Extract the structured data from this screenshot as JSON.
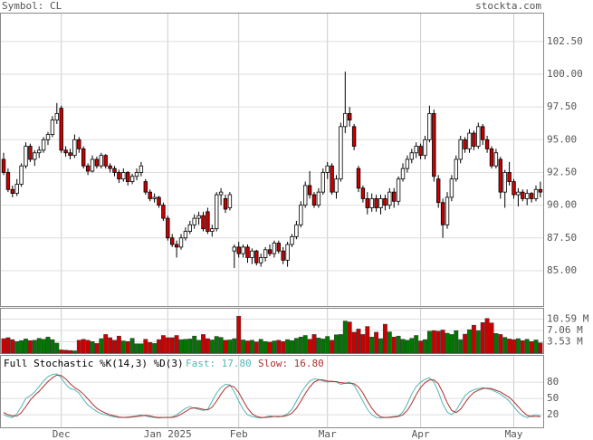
{
  "header": {
    "symbol": "Symbol: CL",
    "site": "stockta.com"
  },
  "chart_data": [
    {
      "type": "candlestick",
      "up_color": "#ffffff",
      "down_color": "#cc0000",
      "ylim": [
        82.3,
        104.7
      ],
      "yticks": [
        {
          "value": 85,
          "label": "85.00"
        },
        {
          "value": 87.5,
          "label": "87.50"
        },
        {
          "value": 90,
          "label": "90.00"
        },
        {
          "value": 92.5,
          "label": "92.50"
        },
        {
          "value": 95,
          "label": "95.00"
        },
        {
          "value": 97.5,
          "label": "97.50"
        },
        {
          "value": 100,
          "label": "100.00"
        },
        {
          "value": 102.5,
          "label": "102.50"
        }
      ],
      "candles": [
        [
          93.5,
          94.0,
          92.3,
          92.5
        ],
        [
          92.5,
          92.8,
          91.0,
          91.2
        ],
        [
          91.2,
          91.5,
          90.6,
          90.9
        ],
        [
          90.9,
          92.0,
          90.7,
          91.6
        ],
        [
          91.6,
          93.2,
          91.4,
          93.0
        ],
        [
          93.0,
          94.8,
          92.8,
          94.5
        ],
        [
          94.5,
          94.7,
          93.3,
          93.5
        ],
        [
          93.5,
          94.2,
          93.0,
          94.0
        ],
        [
          94.0,
          94.5,
          93.6,
          94.2
        ],
        [
          94.2,
          95.2,
          94.0,
          95.0
        ],
        [
          95.0,
          95.6,
          94.6,
          95.4
        ],
        [
          95.4,
          96.8,
          95.2,
          96.5
        ],
        [
          96.5,
          97.8,
          96.2,
          97.0
        ],
        [
          97.4,
          97.6,
          94.0,
          94.2
        ],
        [
          94.2,
          94.5,
          93.7,
          94.0
        ],
        [
          94.0,
          94.3,
          93.5,
          93.8
        ],
        [
          93.8,
          95.4,
          93.6,
          95.0
        ],
        [
          95.0,
          95.2,
          94.0,
          94.3
        ],
        [
          94.3,
          94.5,
          92.8,
          93.0
        ],
        [
          93.0,
          93.2,
          92.3,
          92.6
        ],
        [
          92.6,
          93.8,
          92.5,
          93.5
        ],
        [
          93.5,
          93.7,
          92.8,
          93.0
        ],
        [
          93.0,
          94.0,
          92.8,
          93.8
        ],
        [
          93.8,
          93.9,
          92.8,
          93.0
        ],
        [
          93.0,
          93.2,
          92.5,
          92.8
        ],
        [
          92.8,
          93.0,
          92.2,
          92.5
        ],
        [
          92.5,
          92.7,
          91.7,
          92.0
        ],
        [
          92.0,
          92.8,
          91.8,
          92.5
        ],
        [
          92.5,
          92.6,
          91.5,
          91.8
        ],
        [
          91.8,
          92.4,
          91.6,
          92.2
        ],
        [
          92.2,
          92.8,
          91.9,
          92.5
        ],
        [
          92.5,
          93.3,
          92.2,
          93.0
        ],
        [
          91.8,
          92.0,
          90.8,
          91.0
        ],
        [
          91.0,
          91.2,
          90.3,
          90.5
        ],
        [
          90.5,
          90.9,
          90.2,
          90.6
        ],
        [
          90.6,
          90.7,
          89.8,
          90.0
        ],
        [
          90.0,
          90.2,
          88.8,
          89.0
        ],
        [
          89.0,
          89.2,
          87.3,
          87.5
        ],
        [
          87.5,
          87.8,
          86.8,
          87.0
        ],
        [
          87.0,
          87.3,
          86.0,
          86.8
        ],
        [
          86.8,
          87.8,
          86.6,
          87.5
        ],
        [
          87.5,
          88.3,
          87.3,
          88.0
        ],
        [
          88.0,
          88.8,
          87.8,
          88.5
        ],
        [
          88.5,
          89.3,
          88.2,
          89.0
        ],
        [
          89.0,
          89.5,
          88.5,
          89.2
        ],
        [
          89.2,
          89.5,
          88.0,
          88.2
        ],
        [
          89.5,
          89.8,
          87.8,
          88.0
        ],
        [
          88.0,
          88.5,
          87.6,
          88.2
        ],
        [
          88.2,
          91.0,
          88.0,
          90.8
        ],
        [
          90.8,
          91.3,
          90.0,
          91.0
        ],
        [
          90.5,
          90.8,
          89.4,
          89.7
        ],
        [
          89.8,
          91.0,
          89.6,
          90.8
        ],
        [
          86.5,
          87.0,
          85.2,
          86.8
        ],
        [
          86.8,
          87.2,
          86.0,
          86.3
        ],
        [
          86.3,
          87.0,
          86.0,
          86.8
        ],
        [
          86.8,
          87.0,
          85.6,
          86.0
        ],
        [
          86.0,
          86.7,
          85.5,
          86.5
        ],
        [
          86.5,
          86.6,
          85.4,
          85.6
        ],
        [
          85.6,
          86.3,
          85.3,
          86.0
        ],
        [
          86.0,
          86.8,
          85.7,
          86.6
        ],
        [
          86.6,
          87.0,
          86.1,
          86.3
        ],
        [
          86.3,
          87.3,
          86.0,
          87.1
        ],
        [
          87.1,
          87.3,
          86.3,
          86.5
        ],
        [
          86.5,
          86.8,
          85.5,
          85.8
        ],
        [
          85.8,
          87.2,
          85.3,
          87.0
        ],
        [
          87.0,
          87.8,
          86.8,
          87.6
        ],
        [
          87.6,
          88.8,
          87.4,
          88.5
        ],
        [
          88.5,
          90.3,
          88.3,
          90.0
        ],
        [
          90.0,
          91.8,
          89.8,
          91.5
        ],
        [
          91.5,
          92.6,
          90.5,
          90.8
        ],
        [
          90.8,
          91.0,
          89.8,
          90.0
        ],
        [
          90.0,
          91.3,
          89.8,
          91.0
        ],
        [
          91.0,
          92.8,
          90.8,
          92.5
        ],
        [
          92.5,
          93.3,
          92.0,
          93.0
        ],
        [
          93.0,
          93.2,
          90.8,
          91.0
        ],
        [
          91.0,
          92.3,
          90.5,
          92.0
        ],
        [
          92.0,
          96.3,
          91.8,
          96.0
        ],
        [
          96.0,
          100.2,
          95.5,
          97.0
        ],
        [
          97.0,
          97.5,
          96.0,
          96.5
        ],
        [
          96.0,
          96.2,
          94.2,
          94.5
        ],
        [
          92.8,
          93.0,
          91.0,
          91.3
        ],
        [
          91.3,
          91.5,
          90.2,
          90.5
        ],
        [
          90.5,
          91.0,
          89.3,
          89.8
        ],
        [
          89.8,
          90.9,
          89.5,
          90.5
        ],
        [
          90.5,
          90.8,
          89.5,
          89.8
        ],
        [
          89.8,
          90.8,
          89.3,
          90.5
        ],
        [
          90.5,
          90.8,
          89.6,
          90.0
        ],
        [
          90.0,
          91.3,
          89.7,
          91.0
        ],
        [
          91.0,
          91.3,
          89.8,
          90.3
        ],
        [
          90.3,
          92.2,
          90.0,
          92.0
        ],
        [
          92.0,
          93.2,
          91.8,
          92.8
        ],
        [
          92.8,
          93.8,
          92.5,
          93.5
        ],
        [
          93.5,
          94.3,
          93.2,
          94.0
        ],
        [
          94.0,
          94.8,
          93.6,
          94.5
        ],
        [
          94.5,
          94.7,
          93.5,
          93.8
        ],
        [
          93.8,
          95.3,
          93.5,
          95.0
        ],
        [
          95.0,
          97.6,
          94.8,
          97.0
        ],
        [
          97.0,
          97.3,
          91.8,
          92.2
        ],
        [
          92.0,
          92.3,
          89.8,
          90.2
        ],
        [
          90.2,
          90.5,
          87.5,
          88.5
        ],
        [
          88.5,
          91.0,
          88.2,
          90.6
        ],
        [
          90.6,
          92.3,
          90.3,
          92.0
        ],
        [
          92.0,
          93.8,
          91.8,
          93.5
        ],
        [
          93.5,
          95.3,
          93.2,
          95.0
        ],
        [
          95.0,
          95.2,
          94.0,
          94.3
        ],
        [
          94.3,
          95.8,
          94.0,
          95.5
        ],
        [
          95.5,
          95.7,
          94.2,
          94.5
        ],
        [
          94.5,
          96.3,
          94.3,
          96.0
        ],
        [
          96.0,
          96.2,
          94.6,
          95.0
        ],
        [
          95.0,
          95.3,
          94.0,
          94.3
        ],
        [
          94.3,
          94.5,
          92.8,
          93.0
        ],
        [
          93.0,
          94.3,
          92.8,
          94.0
        ],
        [
          93.5,
          93.7,
          90.5,
          91.0
        ],
        [
          91.0,
          92.7,
          89.8,
          92.5
        ],
        [
          92.5,
          93.3,
          91.5,
          91.8
        ],
        [
          91.8,
          92.0,
          90.5,
          90.8
        ],
        [
          90.8,
          91.3,
          89.9,
          91.0
        ],
        [
          91.0,
          91.2,
          90.3,
          90.5
        ],
        [
          90.5,
          91.2,
          90.0,
          90.9
        ],
        [
          90.9,
          91.0,
          90.2,
          90.5
        ],
        [
          90.5,
          91.5,
          90.3,
          91.2
        ],
        [
          91.2,
          91.8,
          90.6,
          91.0
        ]
      ]
    },
    {
      "type": "bar",
      "up_color": "#007700",
      "down_color": "#cc0000",
      "ylim": [
        0,
        14.1
      ],
      "yticks": [
        {
          "value": 3.53,
          "label": "3.53 M"
        },
        {
          "value": 7.06,
          "label": "7.06 M"
        },
        {
          "value": 10.59,
          "label": "10.59 M"
        }
      ],
      "values": [
        4.5,
        4.8,
        4.2,
        3.6,
        3.9,
        4.4,
        3.9,
        4.0,
        4.6,
        4.3,
        5.0,
        4.2,
        3.1,
        1.0,
        0.9,
        0.8,
        0.7,
        4.0,
        4.3,
        4.0,
        3.6,
        3.0,
        4.5,
        5.8,
        4.8,
        4.0,
        5.3,
        3.8,
        3.6,
        4.6,
        2.9,
        2.9,
        4.3,
        3.3,
        3.0,
        4.2,
        5.5,
        4.8,
        4.8,
        5.5,
        4.2,
        4.3,
        4.4,
        5.3,
        4.0,
        5.8,
        4.5,
        4.1,
        5.2,
        4.9,
        4.0,
        4.1,
        4.5,
        11.5,
        4.1,
        3.8,
        4.0,
        3.5,
        4.3,
        3.6,
        3.4,
        3.8,
        4.0,
        3.6,
        4.2,
        3.9,
        4.6,
        5.0,
        5.5,
        4.3,
        5.8,
        4.7,
        4.4,
        5.2,
        4.0,
        5.7,
        5.8,
        10.0,
        9.7,
        6.5,
        7.5,
        5.8,
        8.3,
        5.0,
        6.5,
        4.5,
        9.0,
        6.6,
        5.0,
        5.3,
        4.3,
        4.0,
        4.6,
        5.5,
        3.8,
        4.2,
        6.8,
        7.0,
        6.8,
        7.2,
        6.2,
        5.8,
        7.0,
        4.2,
        5.9,
        7.3,
        8.7,
        7.0,
        9.5,
        10.8,
        9.4,
        6.1,
        5.8,
        4.9,
        4.4,
        4.2,
        4.5,
        3.9,
        4.3,
        3.6,
        4.1,
        3.2
      ]
    },
    {
      "type": "line",
      "title": "Full Stochastic %K(14,3) %D(3)",
      "ylim": [
        -3,
        130
      ],
      "yticks": [
        20,
        50,
        80
      ],
      "categories": [
        null,
        null,
        null,
        null,
        null,
        null,
        null,
        null,
        null,
        null,
        null,
        null,
        null,
        "Dec",
        null,
        null,
        null,
        null,
        null,
        null,
        null,
        null,
        null,
        null,
        null,
        null,
        null,
        null,
        null,
        null,
        null,
        null,
        null,
        null,
        null,
        null,
        null,
        "Jan 2025",
        null,
        null,
        null,
        null,
        null,
        null,
        null,
        null,
        null,
        null,
        null,
        null,
        null,
        null,
        null,
        "Feb",
        null,
        null,
        null,
        null,
        null,
        null,
        null,
        null,
        null,
        null,
        null,
        null,
        null,
        null,
        null,
        null,
        null,
        null,
        null,
        "Mar",
        null,
        null,
        null,
        null,
        null,
        null,
        null,
        null,
        null,
        null,
        null,
        null,
        null,
        null,
        null,
        null,
        null,
        null,
        null,
        null,
        "Apr",
        null,
        null,
        null,
        null,
        null,
        null,
        null,
        null,
        null,
        null,
        null,
        null,
        null,
        null,
        null,
        null,
        null,
        null,
        null,
        null,
        "May",
        null,
        null,
        null,
        null,
        null,
        null
      ],
      "series": [
        {
          "name": "Fast:",
          "last_label": "17.80",
          "color": "#55b5b5",
          "values": [
            20,
            17,
            15,
            22,
            35,
            50,
            55,
            62,
            72,
            82,
            90,
            94,
            95,
            88,
            76,
            68,
            66,
            60,
            48,
            38,
            32,
            26,
            22,
            20,
            18,
            16,
            15,
            15,
            16,
            17,
            18,
            20,
            18,
            16,
            15,
            14,
            15,
            15,
            16,
            20,
            26,
            32,
            35,
            32,
            30,
            28,
            30,
            45,
            60,
            70,
            76,
            75,
            62,
            45,
            30,
            20,
            17,
            15,
            14,
            16,
            18,
            17,
            16,
            18,
            22,
            30,
            45,
            60,
            72,
            82,
            86,
            85,
            82,
            80,
            82,
            80,
            76,
            78,
            80,
            74,
            60,
            45,
            30,
            20,
            15,
            14,
            15,
            16,
            17,
            18,
            25,
            40,
            58,
            72,
            80,
            85,
            88,
            80,
            62,
            40,
            25,
            20,
            28,
            42,
            55,
            62,
            66,
            68,
            70,
            68,
            66,
            62,
            58,
            52,
            45,
            35,
            25,
            18,
            15,
            18,
            20,
            17.8
          ]
        },
        {
          "name": "Slow:",
          "last_label": "16.80",
          "color": "#b03030",
          "values": [
            24,
            20,
            18,
            18,
            24,
            35,
            47,
            56,
            63,
            72,
            81,
            88,
            93,
            92,
            86,
            77,
            70,
            65,
            58,
            49,
            40,
            32,
            27,
            23,
            20,
            18,
            16,
            15,
            15,
            16,
            17,
            18,
            19,
            18,
            16,
            15,
            15,
            15,
            15,
            17,
            21,
            26,
            31,
            33,
            32,
            30,
            29,
            34,
            45,
            58,
            69,
            74,
            71,
            61,
            46,
            32,
            22,
            17,
            15,
            15,
            16,
            17,
            17,
            17,
            19,
            23,
            32,
            45,
            59,
            71,
            80,
            84,
            84,
            82,
            81,
            81,
            79,
            78,
            78,
            77,
            71,
            60,
            45,
            32,
            22,
            16,
            15,
            15,
            16,
            17,
            20,
            28,
            41,
            57,
            70,
            79,
            84,
            84,
            77,
            61,
            42,
            28,
            24,
            30,
            42,
            53,
            61,
            65,
            68,
            69,
            68,
            65,
            62,
            57,
            52,
            44,
            35,
            26,
            19,
            17,
            17,
            16.8
          ]
        }
      ]
    }
  ]
}
